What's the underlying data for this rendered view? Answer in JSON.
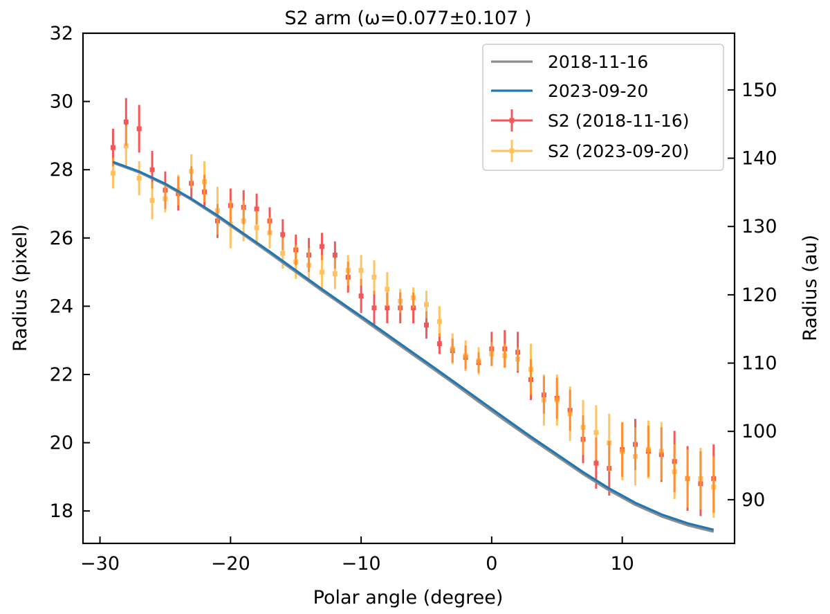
{
  "chart_data": {
    "type": "scatter",
    "title": "S2 arm (ω=0.077±0.107 )",
    "xlabel": "Polar angle (degree)",
    "ylabel": "Radius (pixel)",
    "ylabel_right": "Radius (au)",
    "xlim": [
      -31.3,
      18.6
    ],
    "ylim": [
      17.05,
      32.0
    ],
    "ylim_right": [
      83.6,
      158.3
    ],
    "xticks": [
      -30,
      -20,
      -10,
      0,
      10
    ],
    "xtick_labels": [
      "−30",
      "−20",
      "−10",
      "0",
      "10"
    ],
    "yticks": [
      18,
      20,
      22,
      24,
      26,
      28,
      30,
      32
    ],
    "yticks_right": [
      90,
      100,
      110,
      120,
      130,
      140,
      150
    ],
    "grid": false,
    "legend_position": "top-right",
    "lines": [
      {
        "name": "2018-11-16",
        "color": "#8c8c8c",
        "x": [
          -29,
          -27,
          -25,
          -23,
          -21,
          -19,
          -17,
          -15,
          -13,
          -11,
          -9,
          -7,
          -5,
          -3,
          -1,
          1,
          3,
          5,
          7,
          9,
          11,
          13,
          15,
          17
        ],
        "y": [
          28.2,
          27.92,
          27.56,
          27.12,
          26.62,
          26.09,
          25.55,
          25.0,
          24.45,
          23.92,
          23.38,
          22.84,
          22.3,
          21.76,
          21.2,
          20.65,
          20.12,
          19.6,
          19.08,
          18.6,
          18.18,
          17.84,
          17.58,
          17.39
        ]
      },
      {
        "name": "2023-09-20",
        "color": "#1f77b4",
        "x": [
          -29,
          -27,
          -25,
          -23,
          -21,
          -19,
          -17,
          -15,
          -13,
          -11,
          -9,
          -7,
          -5,
          -3,
          -1,
          1,
          3,
          5,
          7,
          9,
          11,
          13,
          15,
          17
        ],
        "y": [
          28.23,
          27.95,
          27.59,
          27.15,
          26.66,
          26.13,
          25.6,
          25.05,
          24.5,
          23.97,
          23.44,
          22.9,
          22.36,
          21.82,
          21.27,
          20.72,
          20.18,
          19.66,
          19.14,
          18.66,
          18.24,
          17.9,
          17.64,
          17.45
        ]
      }
    ],
    "series": [
      {
        "name": "S2 (2018-11-16)",
        "color": "#ee1111",
        "x": [
          -29,
          -28,
          -27,
          -26,
          -25,
          -24,
          -23,
          -22,
          -21,
          -20,
          -19,
          -18,
          -17,
          -16,
          -15,
          -14,
          -13,
          -12,
          -11,
          -10,
          -9,
          -8,
          -7,
          -6,
          -5,
          -4,
          -3,
          -2,
          -1,
          0,
          1,
          2,
          3,
          4,
          5,
          6,
          7,
          8,
          9,
          10,
          11,
          12,
          13,
          14,
          15,
          16,
          17
        ],
        "y": [
          28.65,
          29.4,
          29.2,
          28.0,
          27.4,
          27.3,
          27.6,
          27.35,
          26.5,
          26.95,
          26.9,
          26.85,
          26.5,
          26.1,
          25.65,
          25.5,
          25.75,
          25.5,
          24.85,
          24.3,
          23.95,
          23.95,
          23.95,
          23.95,
          23.45,
          22.9,
          22.7,
          22.5,
          22.35,
          22.75,
          22.75,
          22.65,
          21.85,
          21.4,
          21.3,
          20.95,
          20.1,
          19.4,
          19.25,
          19.8,
          19.95,
          19.75,
          19.65,
          19.45,
          18.95,
          18.8,
          18.95
        ],
        "err": [
          0.55,
          0.7,
          0.7,
          0.55,
          0.55,
          0.5,
          0.5,
          0.5,
          0.5,
          0.5,
          0.5,
          0.45,
          0.4,
          0.45,
          0.45,
          0.5,
          0.4,
          0.4,
          0.45,
          0.5,
          0.5,
          0.45,
          0.45,
          0.45,
          0.4,
          0.3,
          0.35,
          0.35,
          0.3,
          0.5,
          0.55,
          0.6,
          0.6,
          0.55,
          0.6,
          0.6,
          0.7,
          0.75,
          0.8,
          0.8,
          0.75,
          0.75,
          0.8,
          0.9,
          0.95,
          0.95,
          1.0
        ]
      },
      {
        "name": "S2 (2023-09-20)",
        "color": "#ffaa22",
        "x": [
          -29,
          -28,
          -27,
          -26,
          -25,
          -24,
          -23,
          -22,
          -21,
          -20,
          -19,
          -18,
          -17,
          -16,
          -15,
          -14,
          -13,
          -12,
          -11,
          -10,
          -9,
          -8,
          -7,
          -6,
          -5,
          -4,
          -3,
          -2,
          -1,
          0,
          1,
          2,
          3,
          4,
          5,
          6,
          7,
          8,
          9,
          10,
          11,
          12,
          13,
          14,
          15,
          16,
          17
        ],
        "y": [
          27.9,
          28.7,
          27.75,
          27.1,
          27.15,
          27.4,
          27.95,
          27.65,
          26.8,
          26.4,
          26.5,
          26.3,
          26.15,
          25.55,
          25.3,
          25.2,
          25.0,
          24.95,
          25.05,
          25.05,
          24.85,
          24.5,
          24.15,
          24.25,
          24.05,
          23.55,
          22.75,
          22.55,
          22.4,
          22.6,
          22.55,
          22.45,
          22.15,
          21.25,
          21.25,
          20.85,
          20.45,
          20.3,
          20.0,
          19.75,
          19.6,
          19.8,
          19.75,
          19.15,
          18.95,
          18.95,
          18.7
        ],
        "err": [
          0.45,
          0.6,
          0.5,
          0.55,
          0.4,
          0.45,
          0.5,
          0.6,
          0.7,
          0.7,
          0.6,
          0.5,
          0.45,
          0.45,
          0.5,
          0.5,
          0.5,
          0.45,
          0.45,
          0.45,
          0.5,
          0.5,
          0.35,
          0.3,
          0.4,
          0.45,
          0.45,
          0.45,
          0.4,
          0.35,
          0.35,
          0.35,
          0.75,
          0.75,
          0.75,
          0.8,
          0.8,
          0.8,
          0.85,
          0.85,
          0.85,
          0.85,
          0.85,
          0.8,
          0.85,
          0.9,
          0.9
        ]
      }
    ]
  }
}
